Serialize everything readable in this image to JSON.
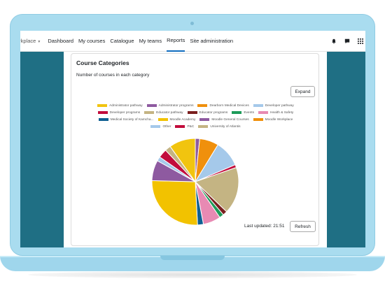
{
  "navbar": {
    "brand": "orkplace",
    "items": [
      "Dashboard",
      "My courses",
      "Catalogue",
      "My teams",
      "Reports",
      "Site administration"
    ],
    "active_index": 4
  },
  "card": {
    "title": "Course Categories",
    "subtitle": "Number of courses in each category",
    "expand_label": "Expand",
    "updated_label": "Last updated: 21:51",
    "refresh_label": "Refresh"
  },
  "colors": {
    "accent": "#0f6cbf",
    "side_panel": "#1f6f84",
    "laptop": "#a9dcef"
  },
  "chart_data": {
    "type": "pie",
    "title": "",
    "legend_position": "top",
    "categories": [
      {
        "name": "Administrator pathway",
        "color": "#f1c40f",
        "value": 0
      },
      {
        "name": "Administrator programs",
        "color": "#8e5aa0",
        "value": 1.5
      },
      {
        "name": "Dearborn Medical Devices",
        "color": "#f0900c",
        "value": 6.5
      },
      {
        "name": "Developer pathway",
        "color": "#a5c9ea",
        "value": 9
      },
      {
        "name": "Developer programs",
        "color": "#c20c3c",
        "value": 1
      },
      {
        "name": "Educator pathway",
        "color": "#c4b483",
        "value": 16
      },
      {
        "name": "Educator programs",
        "color": "#7a1f1f",
        "value": 1.5
      },
      {
        "name": "Events",
        "color": "#1e9b5a",
        "value": 1.5
      },
      {
        "name": "Health & Safety",
        "color": "#e88ab3",
        "value": 6
      },
      {
        "name": "Medical Society of Kamcha...",
        "color": "#0f6093",
        "value": 2
      },
      {
        "name": "Moodle Academy",
        "color": "#f2c200",
        "value": 24
      },
      {
        "name": "Moodle General Courses",
        "color": "#8e5aa0",
        "value": 7
      },
      {
        "name": "Moodle Workplace",
        "color": "#f0900c",
        "value": 0
      },
      {
        "name": "Other",
        "color": "#a5c9ea",
        "value": 1.5
      },
      {
        "name": "P&C",
        "color": "#c20c3c",
        "value": 3
      },
      {
        "name": "University of Atlantis",
        "color": "#c4b483",
        "value": 2
      },
      {
        "name": "Administrator pathway",
        "color": "#f1c40f",
        "value": 9
      }
    ],
    "legend_rows": [
      [
        0,
        1,
        2,
        3
      ],
      [
        4,
        5,
        6,
        7,
        8
      ],
      [
        9,
        10,
        11,
        12
      ],
      [
        13,
        14,
        15
      ]
    ]
  }
}
